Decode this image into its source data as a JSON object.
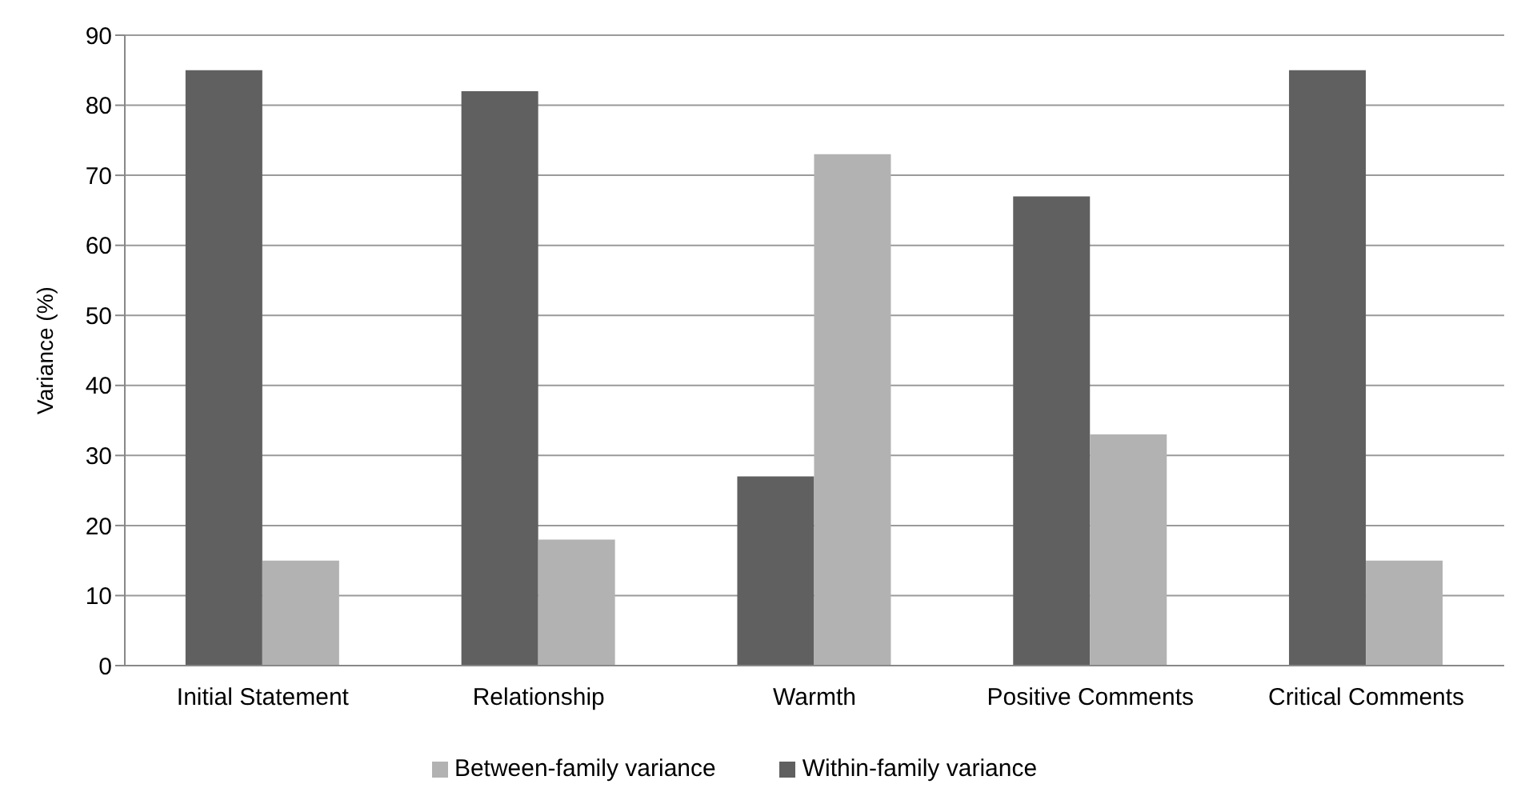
{
  "chart_data": {
    "type": "bar",
    "ylabel": "Variance (%)",
    "categories": [
      "Initial Statement",
      "Relationship",
      "Warmth",
      "Positive Comments",
      "Critical Comments"
    ],
    "series": [
      {
        "name": "Within-family variance",
        "color": "#606060",
        "values": [
          85,
          82,
          27,
          67,
          85
        ]
      },
      {
        "name": "Between-family variance",
        "color": "#b2b2b2",
        "values": [
          15,
          18,
          73,
          33,
          15
        ]
      }
    ],
    "ylim": [
      0,
      90
    ],
    "yticks": [
      0,
      10,
      20,
      30,
      40,
      50,
      60,
      70,
      80,
      90
    ],
    "grid": "y",
    "legend": "bottom"
  }
}
